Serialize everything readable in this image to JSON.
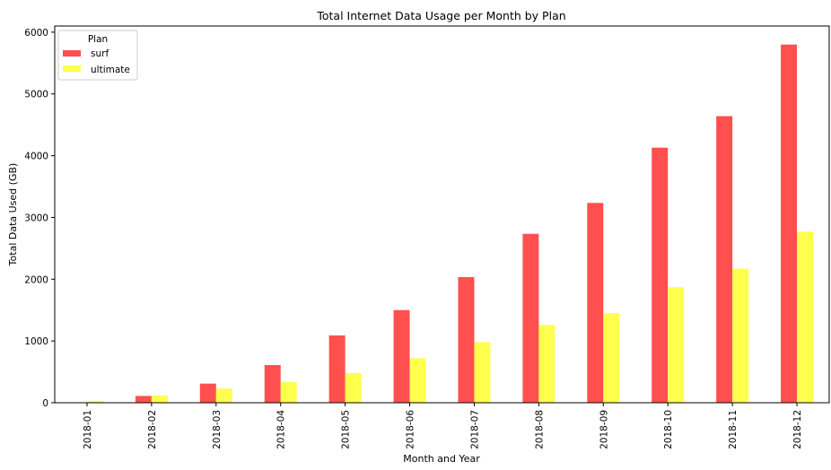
{
  "chart_data": {
    "type": "bar",
    "title": "Total Internet Data Usage per Month by Plan",
    "xlabel": "Month and Year",
    "ylabel": "Total Data Used (GB)",
    "categories": [
      "2018-01",
      "2018-02",
      "2018-03",
      "2018-04",
      "2018-05",
      "2018-06",
      "2018-07",
      "2018-08",
      "2018-09",
      "2018-10",
      "2018-11",
      "2018-12"
    ],
    "series": [
      {
        "name": "surf",
        "color": "#ff4f4f",
        "values": [
          5,
          110,
          310,
          610,
          1090,
          1500,
          2035,
          2735,
          3235,
          4130,
          4640,
          5800
        ]
      },
      {
        "name": "ultimate",
        "color": "#ffff4d",
        "values": [
          27,
          118,
          230,
          335,
          480,
          720,
          980,
          1260,
          1450,
          1870,
          2170,
          2770
        ]
      }
    ],
    "ylim": [
      0,
      6100
    ],
    "yticks": [
      0,
      1000,
      2000,
      3000,
      4000,
      5000,
      6000
    ],
    "legend": {
      "title": "Plan",
      "placement": "top-left"
    },
    "grid": false
  }
}
